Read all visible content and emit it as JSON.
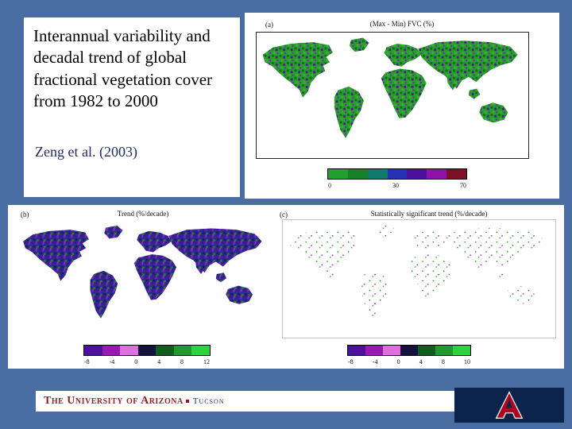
{
  "slide": {
    "title": "Interannual variability and decadal trend of global fractional vegetation cover from 1982 to 2000",
    "citation": "Zeng et al. (2003)"
  },
  "panel_a": {
    "label": "(a)",
    "title": "(Max - Min) FVC (%)",
    "colorbar": {
      "colors": [
        "#1fa02f",
        "#18812a",
        "#0f7a6e",
        "#2433b5",
        "#4c0f9e",
        "#8d12a8",
        "#7e0f24"
      ],
      "ticks": [
        "0",
        "30",
        "70"
      ]
    }
  },
  "panel_b": {
    "label": "(b)",
    "title": "Trend (%/decade)",
    "colorbar": {
      "colors": [
        "#4c0f9e",
        "#9c17b5",
        "#e06ee0",
        "#15123f",
        "#0e5e1e",
        "#1c9c2c",
        "#2bd43b"
      ],
      "ticks": [
        "-8",
        "-4",
        "0",
        "4",
        "8",
        "12"
      ]
    }
  },
  "panel_c": {
    "label": "(c)",
    "title": "Statistically significant trend (%/decade)",
    "colorbar": {
      "colors": [
        "#4c0f9e",
        "#9c17b5",
        "#e06ee0",
        "#15123f",
        "#0e5e1e",
        "#1c9c2c",
        "#2bd43b"
      ],
      "ticks": [
        "-8",
        "-4",
        "0",
        "4",
        "8",
        "10"
      ]
    }
  },
  "footer": {
    "university": "The University of Arizona",
    "city": "Tucson"
  },
  "colors": {
    "slide-bg": "#4a6da3",
    "panel-bg": "#ffffff",
    "navy-text": "#1f2a5e",
    "az-navy": "#0c234b",
    "az-red": "#ab0520",
    "wordmark-red": "#8a2222"
  }
}
